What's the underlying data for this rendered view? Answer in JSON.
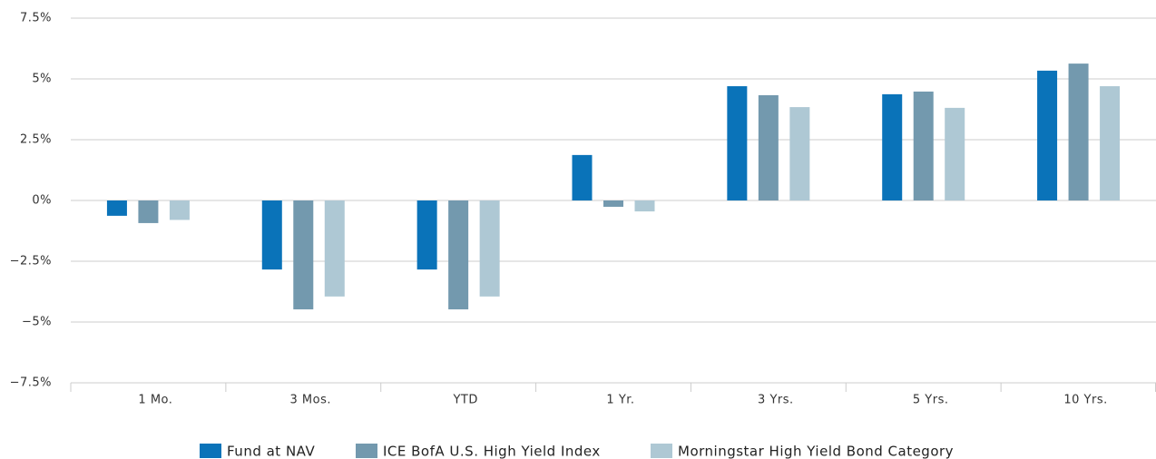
{
  "chart_data": {
    "type": "bar",
    "categories": [
      "1 Mo.",
      "3 Mos.",
      "YTD",
      "1 Yr.",
      "3 Yrs.",
      "5 Yrs.",
      "10 Yrs."
    ],
    "series": [
      {
        "name": "Fund at NAV",
        "color": "#0a73b9",
        "values": [
          -0.63,
          -2.84,
          -2.84,
          1.87,
          4.7,
          4.37,
          5.34
        ]
      },
      {
        "name": "ICE BofA U.S. High Yield Index",
        "color": "#7399ae",
        "values": [
          -0.93,
          -4.48,
          -4.48,
          -0.26,
          4.33,
          4.48,
          5.63
        ]
      },
      {
        "name": "Morningstar High Yield Bond Category",
        "color": "#aec8d4",
        "values": [
          -0.8,
          -3.95,
          -3.95,
          -0.45,
          3.84,
          3.81,
          4.7
        ]
      }
    ],
    "ylim": [
      -7.5,
      7.5
    ],
    "yticks": [
      {
        "value": -7.5,
        "label": "−7.5%"
      },
      {
        "value": -5,
        "label": "−5%"
      },
      {
        "value": -2.5,
        "label": "−2.5%"
      },
      {
        "value": 0,
        "label": "0%"
      },
      {
        "value": 2.5,
        "label": "2.5%"
      },
      {
        "value": 5,
        "label": "5%"
      },
      {
        "value": 7.5,
        "label": "7.5%"
      }
    ],
    "grid": true,
    "legend": "bottom"
  }
}
